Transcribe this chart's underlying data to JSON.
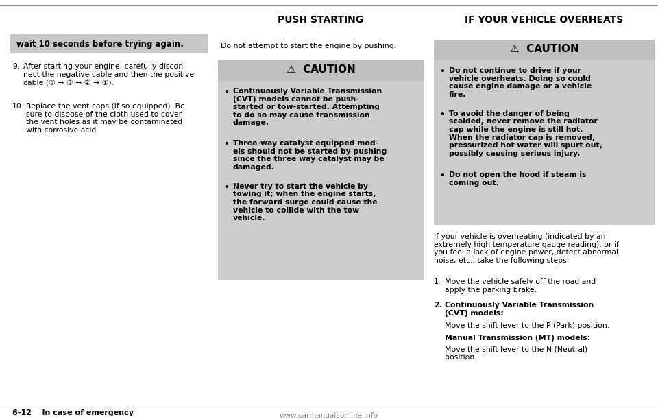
{
  "page_bg": "#ffffff",
  "highlight_box_color": "#c8c8c8",
  "caution_header_color": "#c0c0c0",
  "caution_body_color": "#cccccc",
  "footer_text": "6-12    In case of emergency",
  "watermark_text": "www.carmanualsonline.info",
  "section_title_mid": "PUSH STARTING",
  "section_title_right": "IF YOUR VEHICLE OVERHEATS",
  "highlight_box_text": "wait 10 seconds before trying again.",
  "mid_intro": "Do not attempt to start the engine by pushing.",
  "mid_caution_title": "CAUTION",
  "mid_caution_bullets": [
    "Continuously Variable Transmission\n(CVT) models cannot be push-\nstarted or tow-started. Attempting\nto do so may cause transmission\ndamage.",
    "Three-way catalyst equipped mod-\nels should not be started by pushing\nsince the three way catalyst may be\ndamaged.",
    "Never try to start the vehicle by\ntowing it; when the engine starts,\nthe forward surge could cause the\nvehicle to collide with the tow\nvehicle."
  ],
  "right_caution_title": "CAUTION",
  "right_caution_bullets": [
    "Do not continue to drive if your\nvehicle overheats. Doing so could\ncause engine damage or a vehicle\nfire.",
    "To avoid the danger of being\nscalded, never remove the radiator\ncap while the engine is still hot.\nWhen the radiator cap is removed,\npressurized hot water will spurt out,\npossibly causing serious injury.",
    "Do not open the hood if steam is\ncoming out."
  ],
  "right_body_text": "If your vehicle is overheating (indicated by an\nextremely high temperature gauge reading), or if\nyou feel a lack of engine power, detect abnormal\nnoise, etc., take the following steps:"
}
